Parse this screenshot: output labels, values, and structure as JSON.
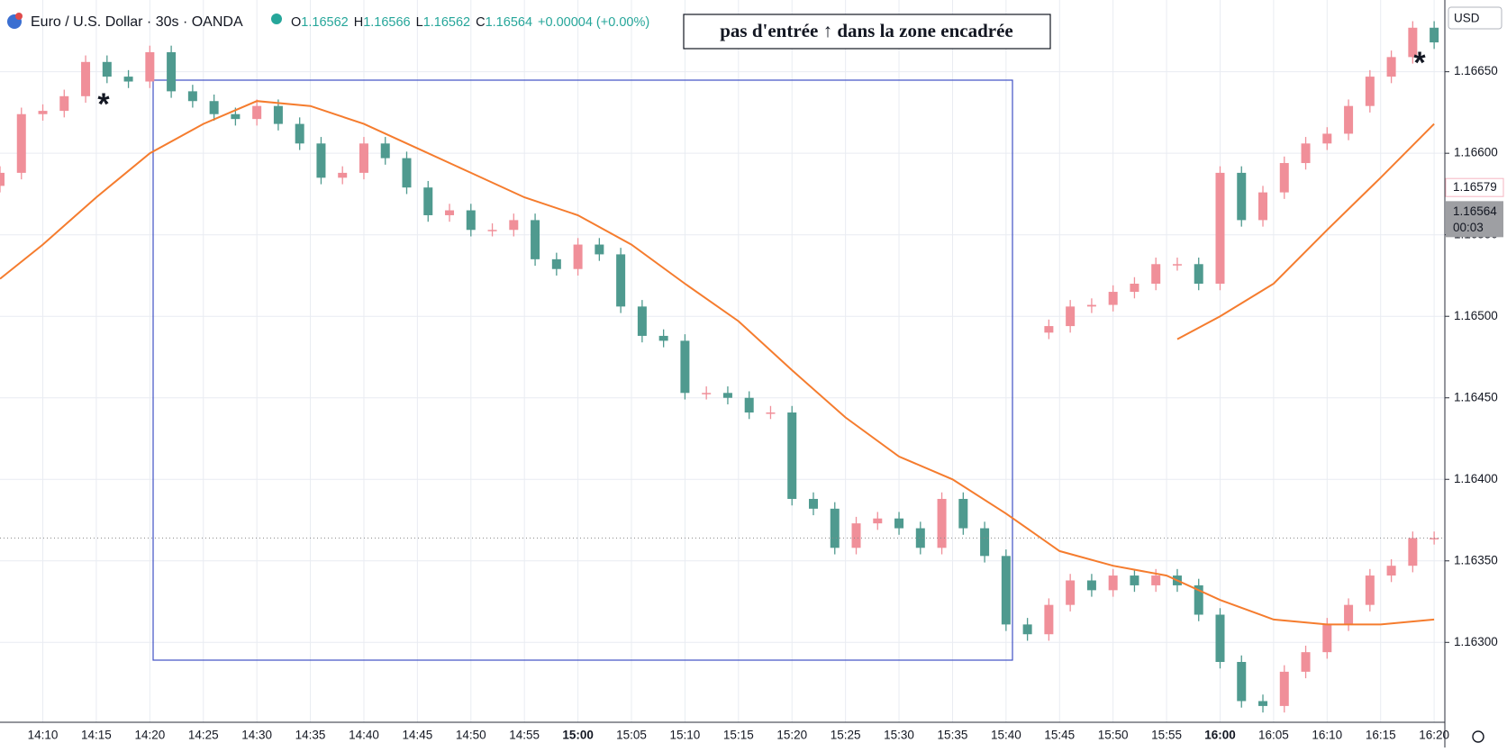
{
  "header": {
    "symbol": "Euro / U.S. Dollar · 30s · OANDA",
    "ohlc_legend": [
      {
        "key": "O",
        "value": "1.16562"
      },
      {
        "key": "H",
        "value": "1.16566"
      },
      {
        "key": "L",
        "value": "1.16562"
      },
      {
        "key": "C",
        "value": "1.16564"
      }
    ],
    "change": "+0.00004 (+0.00%)",
    "currency": "USD"
  },
  "chart_data": {
    "type": "candlestick",
    "annotation": "pas d'entrée ↑ dans la zone encadrée",
    "markers": [
      "*",
      "*"
    ],
    "xlim": [
      "14:06",
      "16:21"
    ],
    "xticks": [
      "14:10",
      "14:15",
      "14:20",
      "14:25",
      "14:30",
      "14:35",
      "14:40",
      "14:45",
      "14:50",
      "14:55",
      "15:00",
      "15:05",
      "15:10",
      "15:15",
      "15:20",
      "15:25",
      "15:30",
      "15:35",
      "15:40",
      "15:45",
      "15:50",
      "15:55",
      "16:00",
      "16:05",
      "16:10",
      "16:15",
      "16:20"
    ],
    "bold_xticks": [
      "15:00",
      "16:00"
    ],
    "ylim": [
      1.16251,
      1.16694
    ],
    "yticks": [
      {
        "value": 1.163,
        "label": "1.16300"
      },
      {
        "value": 1.1635,
        "label": "1.16350"
      },
      {
        "value": 1.164,
        "label": "1.16400"
      },
      {
        "value": 1.1645,
        "label": "1.16450"
      },
      {
        "value": 1.165,
        "label": "1.16500"
      },
      {
        "value": 1.1655,
        "label": "1.16550"
      },
      {
        "value": 1.166,
        "label": "1.16600"
      },
      {
        "value": 1.1665,
        "label": "1.16650"
      }
    ],
    "grid": true,
    "ma_price": 1.16579,
    "last_price": 1.16564,
    "countdown": "00:03",
    "series": [
      {
        "type": "candlestick",
        "up_color": "#f08f99",
        "down_color": "#4f9a8f",
        "x": [
          "14:06",
          "14:08",
          "14:10",
          "14:12",
          "14:14",
          "14:16",
          "14:18",
          "14:20",
          "14:22",
          "14:24",
          "14:26",
          "14:28",
          "14:30",
          "14:32",
          "14:34",
          "14:36",
          "14:38",
          "14:40",
          "14:42",
          "14:44",
          "14:46",
          "14:48",
          "14:50",
          "14:52",
          "14:54",
          "14:56",
          "14:58",
          "15:00",
          "15:02",
          "15:04",
          "15:06",
          "15:08",
          "15:10",
          "15:12",
          "15:14",
          "15:16",
          "15:18",
          "15:20",
          "15:22",
          "15:24",
          "15:26",
          "15:28",
          "15:30",
          "15:32",
          "15:34",
          "15:36",
          "15:38",
          "15:40",
          "15:42",
          "15:44",
          "15:46",
          "15:48",
          "15:50",
          "15:52",
          "15:54",
          "15:56",
          "15:58",
          "16:00",
          "16:02",
          "16:04",
          "16:06",
          "16:08",
          "16:10",
          "16:12",
          "16:14",
          "16:16",
          "16:18",
          "16:20"
        ],
        "open": [
          1.1658,
          1.16588,
          1.16624,
          1.16626,
          1.16635,
          1.16656,
          1.16647,
          1.16644,
          1.16662,
          1.16638,
          1.16632,
          1.16624,
          1.16621,
          1.16629,
          1.16618,
          1.16606,
          1.16585,
          1.16588,
          1.16606,
          1.16597,
          1.16579,
          1.16562,
          1.16565,
          1.16553,
          1.16553,
          1.16559,
          1.16535,
          1.16529,
          1.16544,
          1.16538,
          1.16506,
          1.16488,
          1.16485,
          1.16453,
          1.16453,
          1.1645,
          1.16441,
          1.16441,
          1.16388,
          1.16382,
          1.16358,
          1.16373,
          1.16376,
          1.1637,
          1.16358,
          1.16388,
          1.1637,
          1.16353,
          1.16311,
          1.16305,
          1.16323,
          1.16338,
          1.16332,
          1.16341,
          1.16335,
          1.16341,
          1.16335,
          1.16317,
          1.16288,
          1.16264,
          1.16261,
          1.16282,
          1.16294,
          1.16311,
          1.16323,
          1.16341,
          1.16347,
          1.16364
        ],
        "high": [
          1.16592,
          1.16628,
          1.1663,
          1.16639,
          1.1666,
          1.1666,
          1.16651,
          1.16666,
          1.16666,
          1.16642,
          1.16636,
          1.16628,
          1.16633,
          1.16633,
          1.16622,
          1.1661,
          1.16592,
          1.1661,
          1.1661,
          1.16601,
          1.16583,
          1.16569,
          1.16569,
          1.16557,
          1.16563,
          1.16563,
          1.16539,
          1.16548,
          1.16548,
          1.16542,
          1.1651,
          1.16492,
          1.16489,
          1.16457,
          1.16457,
          1.16454,
          1.16445,
          1.16445,
          1.16392,
          1.16386,
          1.16377,
          1.1638,
          1.1638,
          1.16374,
          1.16392,
          1.16392,
          1.16374,
          1.16357,
          1.16315,
          1.16327,
          1.16342,
          1.16342,
          1.16345,
          1.16345,
          1.16345,
          1.16345,
          1.16339,
          1.16321,
          1.16292,
          1.16268,
          1.16286,
          1.16298,
          1.16315,
          1.16327,
          1.16345,
          1.16351,
          1.16368,
          1.16368
        ],
        "low": [
          1.16576,
          1.16584,
          1.1662,
          1.16622,
          1.16631,
          1.16643,
          1.1664,
          1.1664,
          1.16634,
          1.16628,
          1.1662,
          1.16617,
          1.16617,
          1.16614,
          1.16602,
          1.16581,
          1.16581,
          1.16584,
          1.16593,
          1.16575,
          1.16558,
          1.16558,
          1.16549,
          1.16549,
          1.16549,
          1.16531,
          1.16525,
          1.16525,
          1.16534,
          1.16502,
          1.16484,
          1.16481,
          1.16449,
          1.16449,
          1.16446,
          1.16437,
          1.16437,
          1.16384,
          1.16378,
          1.16354,
          1.16354,
          1.16369,
          1.16366,
          1.16354,
          1.16354,
          1.16366,
          1.16349,
          1.16307,
          1.16301,
          1.16301,
          1.16319,
          1.16328,
          1.16328,
          1.16331,
          1.16331,
          1.16331,
          1.16313,
          1.16284,
          1.1626,
          1.16257,
          1.16257,
          1.16278,
          1.1629,
          1.16307,
          1.16319,
          1.16337,
          1.16343,
          1.1636
        ],
        "close": [
          1.16588,
          1.16624,
          1.16626,
          1.16635,
          1.16656,
          1.16647,
          1.16644,
          1.16662,
          1.16638,
          1.16632,
          1.16624,
          1.16621,
          1.16629,
          1.16618,
          1.16606,
          1.16585,
          1.16588,
          1.16606,
          1.16597,
          1.16579,
          1.16562,
          1.16565,
          1.16553,
          1.16553,
          1.16559,
          1.16535,
          1.16529,
          1.16544,
          1.16538,
          1.16506,
          1.16488,
          1.16485,
          1.16453,
          1.16453,
          1.1645,
          1.16441,
          1.16441,
          1.16388,
          1.16382,
          1.16358,
          1.16373,
          1.16376,
          1.1637,
          1.16358,
          1.16388,
          1.1637,
          1.16353,
          1.16311,
          1.16305,
          1.16323,
          1.16338,
          1.16332,
          1.16341,
          1.16335,
          1.16341,
          1.16335,
          1.16317,
          1.16288,
          1.16264,
          1.16261,
          1.16282,
          1.16294,
          1.16311,
          1.16323,
          1.16341,
          1.16347,
          1.16364,
          1.16364
        ]
      },
      {
        "type": "candlestick",
        "up_color": "#f08f99",
        "down_color": "#4f9a8f",
        "x": [
          "15:44",
          "15:46",
          "15:48",
          "15:50",
          "15:52",
          "15:54",
          "15:56",
          "15:58",
          "16:00",
          "16:02",
          "16:04",
          "16:06",
          "16:08",
          "16:10",
          "16:12",
          "16:14",
          "16:16",
          "16:18",
          "16:20"
        ],
        "open": [
          1.1649,
          1.16494,
          1.16506,
          1.16507,
          1.16515,
          1.1652,
          1.16532,
          1.16532,
          1.1652,
          1.16588,
          1.16559,
          1.16576,
          1.16594,
          1.16606,
          1.16612,
          1.16629,
          1.16647,
          1.16659,
          1.16677
        ],
        "high": [
          1.16498,
          1.1651,
          1.16511,
          1.16519,
          1.16524,
          1.16536,
          1.16536,
          1.16536,
          1.16592,
          1.16592,
          1.1658,
          1.16598,
          1.1661,
          1.16616,
          1.16633,
          1.16651,
          1.16663,
          1.16681,
          1.16681
        ],
        "low": [
          1.16486,
          1.1649,
          1.16502,
          1.16503,
          1.16511,
          1.16516,
          1.16528,
          1.16516,
          1.16516,
          1.16555,
          1.16555,
          1.16572,
          1.1659,
          1.16602,
          1.16608,
          1.16625,
          1.16643,
          1.16655,
          1.16664
        ],
        "close": [
          1.16494,
          1.16506,
          1.16507,
          1.16515,
          1.1652,
          1.16532,
          1.16532,
          1.1652,
          1.16588,
          1.16559,
          1.16576,
          1.16594,
          1.16606,
          1.16612,
          1.16629,
          1.16647,
          1.16659,
          1.16677,
          1.16668
        ]
      },
      {
        "type": "line",
        "color": "#f57c2e",
        "x": [
          "14:06",
          "14:10",
          "14:15",
          "14:20",
          "14:25",
          "14:30",
          "14:35",
          "14:40",
          "14:45",
          "14:50",
          "14:55",
          "15:00",
          "15:05",
          "15:10",
          "15:15",
          "15:20",
          "15:25",
          "15:30",
          "15:35",
          "15:40",
          "15:45",
          "15:50",
          "15:55",
          "16:00",
          "16:05",
          "16:10",
          "16:15",
          "16:20"
        ],
        "values": [
          1.16523,
          1.16544,
          1.16573,
          1.166,
          1.16618,
          1.16632,
          1.16629,
          1.16618,
          1.16603,
          1.16588,
          1.16573,
          1.16562,
          1.16544,
          1.1652,
          1.16497,
          1.16467,
          1.16438,
          1.16414,
          1.164,
          1.16379,
          1.16356,
          1.16347,
          1.16341,
          1.16326,
          1.16314,
          1.16311,
          1.16311,
          1.16314
        ]
      },
      {
        "type": "line",
        "color": "#f57c2e",
        "x": [
          "15:56",
          "16:00",
          "16:05",
          "16:10",
          "16:15",
          "16:20"
        ],
        "values": [
          1.16486,
          1.165,
          1.1652,
          1.16553,
          1.16585,
          1.16618
        ]
      }
    ]
  }
}
